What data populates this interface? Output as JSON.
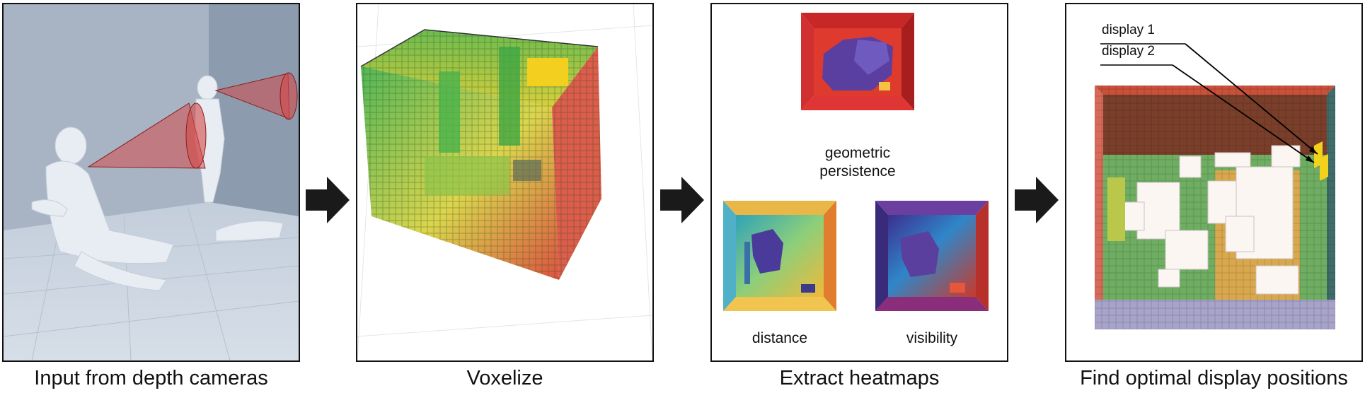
{
  "figure": {
    "stages": [
      {
        "caption": "Input from depth cameras"
      },
      {
        "caption": "Voxelize"
      },
      {
        "caption": "Extract heatmaps"
      },
      {
        "caption": "Find optimal display positions"
      }
    ],
    "heatmaps": {
      "geometric_line1": "geometric",
      "geometric_line2": "persistence",
      "distance": "distance",
      "visibility": "visibility"
    },
    "displays": {
      "display1": "display 1",
      "display2": "display 2"
    }
  },
  "colors": {
    "border": "#111111",
    "floor": "#c9d3df",
    "wall": "#a9b6c6",
    "cone": "#d44a4a",
    "voxel_green": "#3fae45",
    "voxel_yellow": "#e9d838",
    "voxel_red": "#d7402c",
    "display_yellow": "#f2d21b"
  }
}
